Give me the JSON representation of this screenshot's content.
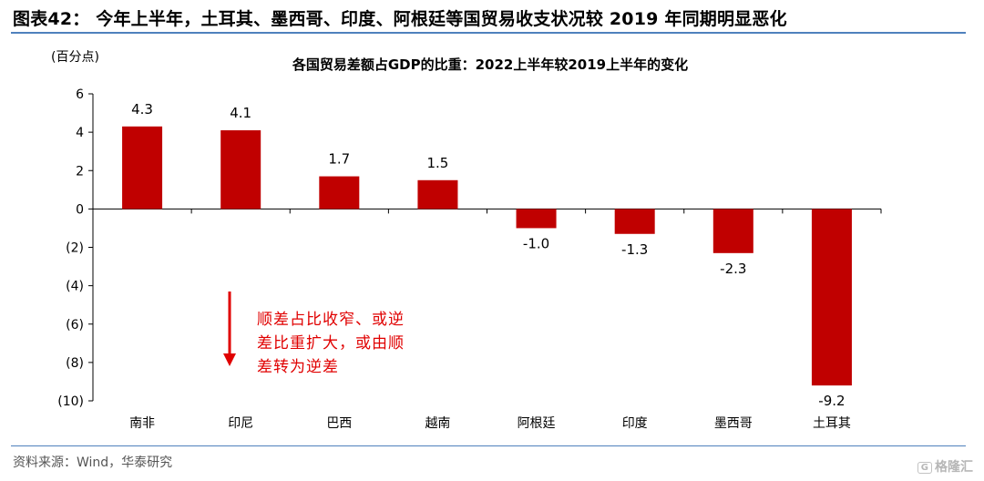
{
  "figure": {
    "title": "图表42： 今年上半年，土耳其、墨西哥、印度、阿根廷等国贸易收支状况较 2019 年同期明显恶化",
    "source": "资料来源：Wind，华泰研究",
    "watermark": "格隆汇",
    "watermark_badge": "G"
  },
  "chart_data": {
    "type": "bar",
    "title": "各国贸易差额占GDP的比重：2022上半年较2019上半年的变化",
    "unit_label": "(百分点)",
    "categories": [
      "南非",
      "印尼",
      "巴西",
      "越南",
      "阿根廷",
      "印度",
      "墨西哥",
      "土耳其"
    ],
    "values": [
      4.3,
      4.1,
      1.7,
      1.5,
      -1.0,
      -1.3,
      -2.3,
      -9.2
    ],
    "data_labels": [
      "4.3",
      "4.1",
      "1.7",
      "1.5",
      "-1.0",
      "-1.3",
      "-2.3",
      "-9.2"
    ],
    "ylim": [
      -10,
      6
    ],
    "yticks": [
      6,
      4,
      2,
      0,
      -2,
      -4,
      -6,
      -8,
      -10
    ],
    "ytick_labels": [
      "6",
      "4",
      "2",
      "0",
      "(2)",
      "(4)",
      "(6)",
      "(8)",
      "(10)"
    ],
    "grid": false,
    "bar_color": "#c00000",
    "annotation": {
      "lines": [
        "顺差占比收窄、或逆",
        "差比重扩大，或由顺",
        "差转为逆差"
      ],
      "color": "#e00000"
    }
  }
}
